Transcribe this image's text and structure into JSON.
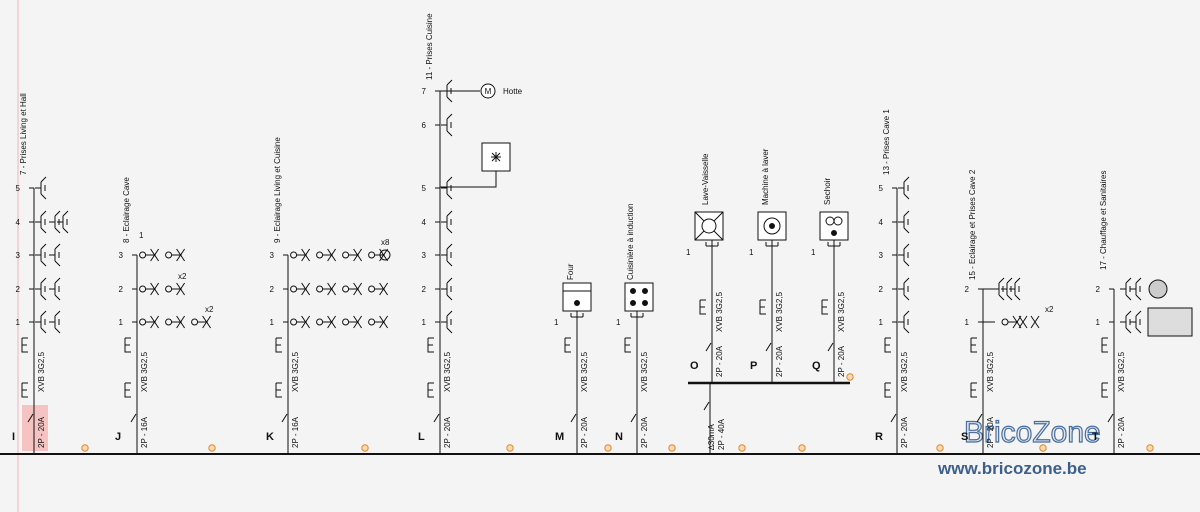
{
  "circuits": [
    {
      "id": "I",
      "breaker": "2P - 20A",
      "cable": "XVB 3G2,5",
      "title": "7 - Prises Living et Hall",
      "points": [
        5,
        4,
        3,
        2,
        1
      ]
    },
    {
      "id": "J",
      "breaker": "2P - 16A",
      "cable": "XVB 3G2,5",
      "title": "8 - Eclairage Cave",
      "points": [
        3,
        2,
        1
      ],
      "notes": [
        "1",
        "x2",
        "x2"
      ]
    },
    {
      "id": "K",
      "breaker": "2P - 16A",
      "cable": "XVB 3G2,5",
      "title": "9 - Eclairage Living et Cuisine",
      "points": [
        3,
        2,
        1
      ],
      "notes": [
        "x8"
      ]
    },
    {
      "id": "L",
      "breaker": "2P - 20A",
      "cable": "XVB 3G2,5",
      "title": "11 - Prises Cuisine",
      "points": [
        7,
        6,
        5,
        4,
        3,
        2,
        1
      ],
      "notes": [
        "M",
        "Hotte"
      ]
    },
    {
      "id": "M",
      "breaker": "2P - 20A",
      "cable": "XVB 3G2,5",
      "title": "Four",
      "points": [
        1
      ]
    },
    {
      "id": "N",
      "breaker": "2P - 20A",
      "cable": "XVB 3G2,5",
      "title": "Cuisinière à induction",
      "points": [
        1
      ]
    },
    {
      "id": "O",
      "breaker": "2P - 20A",
      "cable": "XVB 3G2,5",
      "title": "Lave-Vaisselle",
      "points": [
        1
      ]
    },
    {
      "id": "P",
      "breaker": "2P - 20A",
      "cable": "XVB 3G2,5",
      "title": "Machine à laver",
      "points": [
        1
      ]
    },
    {
      "id": "Q",
      "breaker": "2P - 20A",
      "cable": "XVB 3G2,5",
      "title": "Sechoir",
      "points": [
        1
      ]
    },
    {
      "id": "R",
      "breaker": "2P - 20A",
      "cable": "XVB 3G2,5",
      "title": "13 - Prises Cave 1",
      "points": [
        5,
        4,
        3,
        2,
        1
      ]
    },
    {
      "id": "S",
      "breaker": "2P - 20A",
      "cable": "XVB 3G2,5",
      "title": "15 - Eclairage et Prises Cave 2",
      "points": [
        2,
        1
      ],
      "notes": [
        "x2"
      ]
    },
    {
      "id": "T",
      "breaker": "2P - 20A",
      "cable": "XVB 3G2,5",
      "title": "17 - Chauffage et Sanitaires",
      "points": [
        2,
        1
      ]
    }
  ],
  "differential": {
    "sensitivity": "∆30mA",
    "breaker": "2P - 40A"
  },
  "watermark": {
    "name": "BricoZone",
    "url": "www.bricozone.be"
  }
}
